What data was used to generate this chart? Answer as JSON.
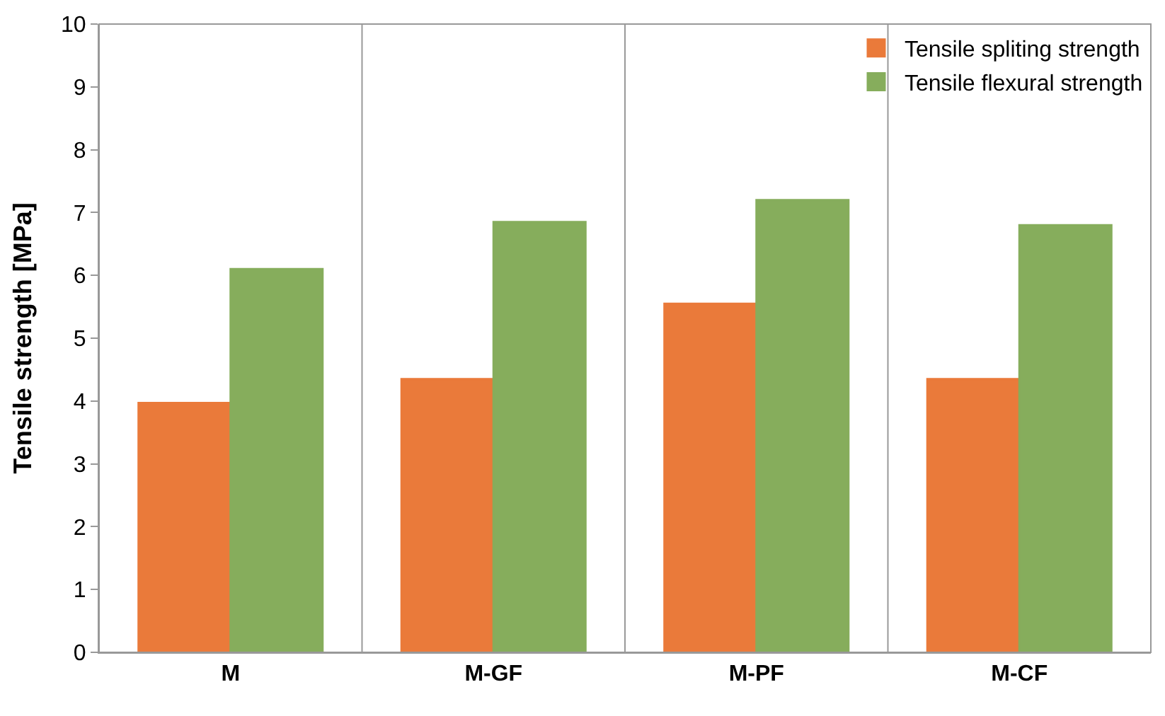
{
  "chart_data": {
    "type": "bar",
    "ylabel": "Tensile strength [MPa]",
    "categories": [
      "M",
      "M-GF",
      "M-PF",
      "M-CF"
    ],
    "series": [
      {
        "name": "Tensile spliting strength",
        "color": "#ea7a3a",
        "values": [
          3.97,
          4.35,
          5.55,
          4.35
        ]
      },
      {
        "name": "Tensile flexural strength",
        "color": "#86ad5c",
        "values": [
          6.1,
          6.85,
          7.2,
          6.8
        ]
      }
    ],
    "ylim": [
      0,
      10
    ],
    "yticks": [
      0,
      1,
      2,
      3,
      4,
      5,
      6,
      7,
      8,
      9,
      10
    ],
    "grid": "x",
    "legend": "top right"
  }
}
